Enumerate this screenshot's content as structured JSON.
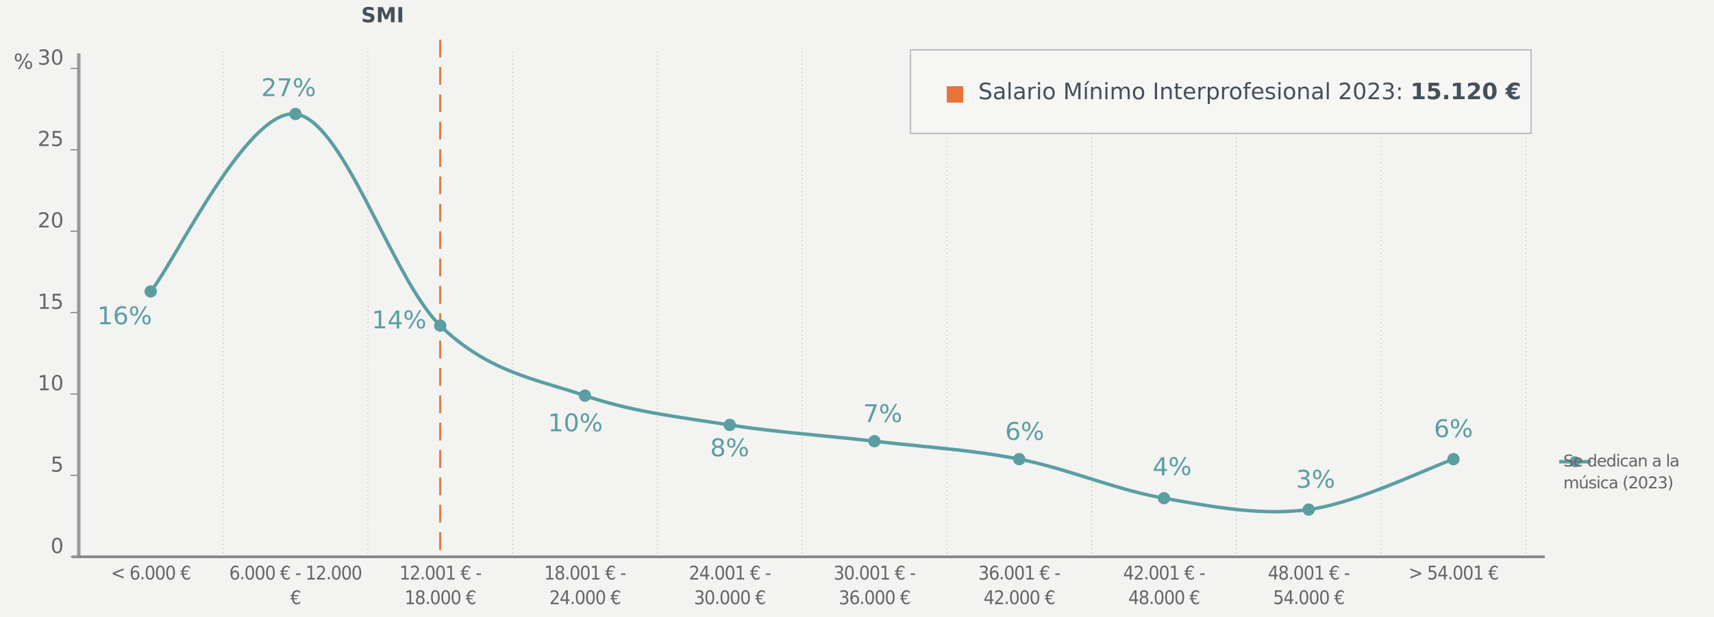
{
  "chart_data": {
    "type": "line",
    "y_label": "%",
    "categories": [
      "< 6.000 €",
      "6.000 € - 12.000 €",
      "12.001 € - 18.000 €",
      "18.001 € - 24.000 €",
      "24.001 € - 30.000 €",
      "30.001 € - 36.000 €",
      "36.001 € - 42.000 €",
      "42.001 € - 48.000 €",
      "48.001 € - 54.000 €",
      "> 54.001 €"
    ],
    "series": [
      {
        "name": "Se dedican a la música (2023)",
        "color": "#5a9ea2",
        "values": [
          16.3,
          27.2,
          14.2,
          9.9,
          8.1,
          7.1,
          6,
          3.6,
          2.9,
          6
        ],
        "value_labels": [
          "16%",
          "27%",
          "14%",
          "10%",
          "8%",
          "7%",
          "6%",
          "4%",
          "3%",
          "6%"
        ]
      }
    ],
    "ylim": [
      0,
      30
    ],
    "yticks": [
      0,
      5,
      10,
      15,
      20,
      25,
      30
    ],
    "marker_line": {
      "category": 2,
      "label": "SMI",
      "color": "#e07b39"
    },
    "annotation": {
      "text": "Salario Mínimo Interprofesional 2023: ",
      "value": "15.120 €",
      "color": "#e8733a"
    },
    "legend": "right"
  }
}
